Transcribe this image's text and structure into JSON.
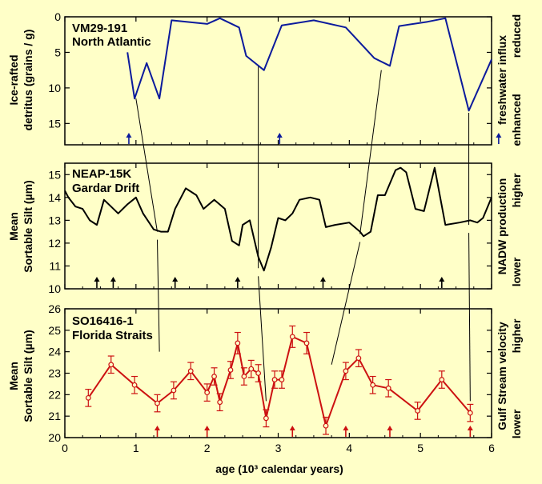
{
  "colors": {
    "background": "#ffffc8",
    "panel1_line": "#0b1a9c",
    "panel2_line": "#000000",
    "panel3_line": "#cc1111",
    "frame": "#000000"
  },
  "chart_data": [
    {
      "type": "line",
      "panel_title": [
        "VM29-191",
        "North Atlantic"
      ],
      "ylabel": [
        "Ice-rafted",
        "detritus (grains / g)"
      ],
      "right_label": [
        "freshwater influx",
        "enhanced",
        "reduced"
      ],
      "y_inverted": true,
      "ylim": [
        18,
        0
      ],
      "yticks": [
        0,
        5,
        10,
        15
      ],
      "xlim": [
        0,
        6
      ],
      "series": [
        {
          "x": [
            0.88,
            0.98,
            1.15,
            1.33,
            1.5,
            2.0,
            2.18,
            2.45,
            2.55,
            2.8,
            3.05,
            3.5,
            3.95,
            4.35,
            4.57,
            4.7,
            5.1,
            5.35,
            5.68,
            6.0
          ],
          "y": [
            5.0,
            11.5,
            6.5,
            11.5,
            0.5,
            1.0,
            0.2,
            1.5,
            5.5,
            7.5,
            1.2,
            0.5,
            1.5,
            5.8,
            6.9,
            1.3,
            0.7,
            0.2,
            13.2,
            6.0
          ]
        }
      ],
      "event_arrows_x": [
        0.9,
        3.02,
        6.1
      ]
    },
    {
      "type": "line",
      "panel_title": [
        "NEAP-15K",
        "Gardar Drift"
      ],
      "ylabel": [
        "Mean",
        "Sortable Silt (µm)"
      ],
      "right_label": [
        "NADW production",
        "lower",
        "higher"
      ],
      "ylim": [
        10,
        15.5
      ],
      "yticks": [
        10,
        11,
        12,
        13,
        14,
        15
      ],
      "xlim": [
        0,
        6
      ],
      "series": [
        {
          "x": [
            0.0,
            0.05,
            0.15,
            0.25,
            0.35,
            0.45,
            0.55,
            0.65,
            0.75,
            0.88,
            1.0,
            1.1,
            1.25,
            1.35,
            1.45,
            1.55,
            1.7,
            1.85,
            1.95,
            2.1,
            2.25,
            2.35,
            2.45,
            2.5,
            2.6,
            2.72,
            2.8,
            2.9,
            3.0,
            3.1,
            3.2,
            3.3,
            3.45,
            3.58,
            3.67,
            3.8,
            4.0,
            4.15,
            4.2,
            4.3,
            4.4,
            4.5,
            4.65,
            4.72,
            4.8,
            4.93,
            5.05,
            5.2,
            5.35,
            5.55,
            5.7,
            5.8,
            5.88,
            6.0
          ],
          "y": [
            14.3,
            14.0,
            13.6,
            13.5,
            13.0,
            12.8,
            13.9,
            13.6,
            13.3,
            13.7,
            14.0,
            13.3,
            12.6,
            12.5,
            12.5,
            13.5,
            14.4,
            14.1,
            13.5,
            13.9,
            13.5,
            12.1,
            11.9,
            12.8,
            13.0,
            11.4,
            10.8,
            11.8,
            13.1,
            13.0,
            13.3,
            13.9,
            14.0,
            13.9,
            12.7,
            12.8,
            12.9,
            12.5,
            12.3,
            12.5,
            14.1,
            14.1,
            15.2,
            15.3,
            15.1,
            13.5,
            13.4,
            15.3,
            12.8,
            12.9,
            13.0,
            12.9,
            13.1,
            14.0
          ]
        }
      ],
      "event_arrows_x": [
        0.45,
        0.68,
        1.55,
        2.43,
        3.63,
        5.3
      ]
    },
    {
      "type": "line",
      "panel_title": [
        "SO16416-1",
        "Florida Straits"
      ],
      "ylabel": [
        "Mean",
        "Sortable Silt (µm)"
      ],
      "right_label": [
        "Gulf Stream velocity",
        "lower",
        "higher"
      ],
      "xlabel": "age (10³ calendar years)",
      "ylim": [
        20,
        26
      ],
      "yticks": [
        20,
        21,
        22,
        23,
        24,
        25,
        26
      ],
      "xlim": [
        0,
        6
      ],
      "xticks": [
        0,
        1,
        2,
        3,
        4,
        5,
        6
      ],
      "series": [
        {
          "x": [
            0.33,
            0.65,
            0.98,
            1.3,
            1.53,
            1.77,
            2.0,
            2.1,
            2.18,
            2.33,
            2.43,
            2.52,
            2.62,
            2.72,
            2.83,
            2.95,
            3.05,
            3.2,
            3.4,
            3.67,
            3.95,
            4.13,
            4.33,
            4.55,
            4.96,
            5.3,
            5.7
          ],
          "y": [
            21.85,
            23.4,
            22.45,
            21.6,
            22.2,
            23.1,
            22.1,
            22.85,
            21.65,
            23.15,
            24.4,
            22.85,
            23.2,
            23.0,
            20.9,
            22.7,
            22.7,
            24.7,
            24.4,
            20.55,
            23.1,
            23.7,
            22.45,
            22.3,
            21.25,
            22.7,
            21.15
          ]
        }
      ],
      "error": [
        0.4,
        0.4,
        0.4,
        0.4,
        0.4,
        0.4,
        0.4,
        0.4,
        0.4,
        0.4,
        0.5,
        0.4,
        0.4,
        0.4,
        0.4,
        0.4,
        0.4,
        0.5,
        0.5,
        0.4,
        0.4,
        0.4,
        0.4,
        0.4,
        0.4,
        0.4,
        0.4
      ],
      "event_arrows_x": [
        1.3,
        2.0,
        3.2,
        3.95,
        4.57,
        5.7
      ]
    }
  ],
  "correlation_lines": [
    {
      "from": [
        1.0,
        11.5
      ],
      "to": [
        1.3,
        12.5
      ],
      "to_text": [
        1.33,
        24.0
      ],
      "mid": [
        1.35,
        12.4
      ]
    },
    {
      "from": [
        2.72,
        7.0
      ],
      "to": [
        2.72,
        10.9
      ],
      "to_text": [
        2.83,
        21.7
      ]
    },
    {
      "from": [
        4.45,
        7.5
      ],
      "to": [
        4.15,
        12.4
      ],
      "to_text": [
        3.75,
        23.4
      ]
    },
    {
      "from": [
        5.68,
        13.5
      ],
      "to": [
        5.68,
        12.8
      ],
      "to_text": [
        5.7,
        21.7
      ]
    }
  ]
}
